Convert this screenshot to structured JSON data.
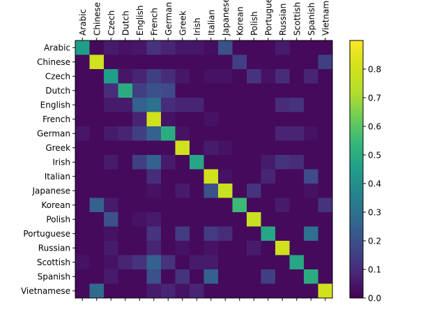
{
  "chart_data": {
    "type": "heatmap",
    "title": "",
    "xlabel": "",
    "ylabel": "",
    "x_tick_labels": [
      "Arabic",
      "Chinese",
      "Czech",
      "Dutch",
      "English",
      "French",
      "German",
      "Greek",
      "Irish",
      "Italian",
      "Japanese",
      "Korean",
      "Polish",
      "Portuguese",
      "Russian",
      "Scottish",
      "Spanish",
      "Vietnamese"
    ],
    "y_tick_labels": [
      "Arabic",
      "Chinese",
      "Czech",
      "Dutch",
      "English",
      "French",
      "German",
      "Greek",
      "Irish",
      "Italian",
      "Japanese",
      "Korean",
      "Polish",
      "Portuguese",
      "Russian",
      "Scottish",
      "Spanish",
      "Vietnamese"
    ],
    "values": [
      [
        0.45,
        0.02,
        0.06,
        0.04,
        0.05,
        0.12,
        0.08,
        0.05,
        0.05,
        0.03,
        0.2,
        0.02,
        0.02,
        0.02,
        0.06,
        0.02,
        0.02,
        0.02
      ],
      [
        0.02,
        0.8,
        0.02,
        0.02,
        0.02,
        0.02,
        0.02,
        0.02,
        0.02,
        0.02,
        0.02,
        0.15,
        0.02,
        0.02,
        0.02,
        0.02,
        0.02,
        0.15
      ],
      [
        0.02,
        0.02,
        0.45,
        0.05,
        0.08,
        0.15,
        0.1,
        0.05,
        0.02,
        0.04,
        0.04,
        0.02,
        0.12,
        0.04,
        0.1,
        0.02,
        0.08,
        0.02
      ],
      [
        0.02,
        0.02,
        0.1,
        0.5,
        0.15,
        0.2,
        0.18,
        0.02,
        0.02,
        0.02,
        0.02,
        0.02,
        0.02,
        0.02,
        0.02,
        0.02,
        0.02,
        0.02
      ],
      [
        0.02,
        0.02,
        0.06,
        0.06,
        0.25,
        0.3,
        0.1,
        0.08,
        0.08,
        0.02,
        0.02,
        0.02,
        0.02,
        0.02,
        0.1,
        0.12,
        0.02,
        0.02
      ],
      [
        0.02,
        0.02,
        0.02,
        0.02,
        0.08,
        0.8,
        0.04,
        0.02,
        0.02,
        0.04,
        0.02,
        0.02,
        0.02,
        0.02,
        0.02,
        0.02,
        0.02,
        0.02
      ],
      [
        0.05,
        0.02,
        0.06,
        0.08,
        0.15,
        0.25,
        0.5,
        0.04,
        0.02,
        0.02,
        0.02,
        0.02,
        0.02,
        0.02,
        0.08,
        0.08,
        0.04,
        0.02
      ],
      [
        0.02,
        0.02,
        0.02,
        0.02,
        0.02,
        0.02,
        0.02,
        0.8,
        0.02,
        0.06,
        0.04,
        0.02,
        0.02,
        0.02,
        0.02,
        0.02,
        0.02,
        0.02
      ],
      [
        0.02,
        0.02,
        0.06,
        0.02,
        0.15,
        0.25,
        0.06,
        0.02,
        0.48,
        0.02,
        0.02,
        0.02,
        0.02,
        0.06,
        0.12,
        0.1,
        0.02,
        0.02
      ],
      [
        0.02,
        0.02,
        0.02,
        0.02,
        0.02,
        0.1,
        0.02,
        0.02,
        0.02,
        0.8,
        0.04,
        0.02,
        0.02,
        0.08,
        0.02,
        0.02,
        0.18,
        0.02
      ],
      [
        0.02,
        0.02,
        0.02,
        0.02,
        0.02,
        0.04,
        0.02,
        0.06,
        0.02,
        0.2,
        0.78,
        0.02,
        0.12,
        0.02,
        0.02,
        0.02,
        0.04,
        0.02
      ],
      [
        0.02,
        0.25,
        0.06,
        0.02,
        0.02,
        0.02,
        0.02,
        0.02,
        0.02,
        0.02,
        0.02,
        0.55,
        0.02,
        0.02,
        0.06,
        0.02,
        0.02,
        0.12
      ],
      [
        0.02,
        0.02,
        0.2,
        0.02,
        0.04,
        0.06,
        0.02,
        0.02,
        0.02,
        0.02,
        0.02,
        0.02,
        0.78,
        0.02,
        0.02,
        0.02,
        0.02,
        0.02
      ],
      [
        0.02,
        0.02,
        0.04,
        0.02,
        0.02,
        0.12,
        0.02,
        0.14,
        0.02,
        0.14,
        0.1,
        0.02,
        0.02,
        0.48,
        0.02,
        0.02,
        0.3,
        0.02
      ],
      [
        0.02,
        0.02,
        0.06,
        0.02,
        0.02,
        0.08,
        0.02,
        0.04,
        0.02,
        0.04,
        0.02,
        0.02,
        0.06,
        0.02,
        0.8,
        0.02,
        0.02,
        0.02
      ],
      [
        0.04,
        0.02,
        0.04,
        0.08,
        0.12,
        0.25,
        0.12,
        0.02,
        0.06,
        0.06,
        0.02,
        0.02,
        0.02,
        0.02,
        0.02,
        0.48,
        0.02,
        0.02
      ],
      [
        0.02,
        0.02,
        0.06,
        0.02,
        0.02,
        0.2,
        0.02,
        0.12,
        0.02,
        0.25,
        0.02,
        0.02,
        0.02,
        0.15,
        0.02,
        0.02,
        0.5,
        0.02
      ],
      [
        0.02,
        0.28,
        0.02,
        0.02,
        0.02,
        0.06,
        0.08,
        0.04,
        0.08,
        0.02,
        0.02,
        0.02,
        0.02,
        0.02,
        0.02,
        0.02,
        0.02,
        0.8
      ]
    ],
    "color_scale": {
      "name": "viridis",
      "min": 0.0,
      "max": 0.9,
      "ticks": [
        0.0,
        0.1,
        0.2,
        0.3,
        0.4,
        0.5,
        0.6,
        0.7,
        0.8
      ],
      "tick_labels": [
        "0.0",
        "0.1",
        "0.2",
        "0.3",
        "0.4",
        "0.5",
        "0.6",
        "0.7",
        "0.8"
      ]
    },
    "grid": false,
    "legend": "colorbar-right"
  }
}
